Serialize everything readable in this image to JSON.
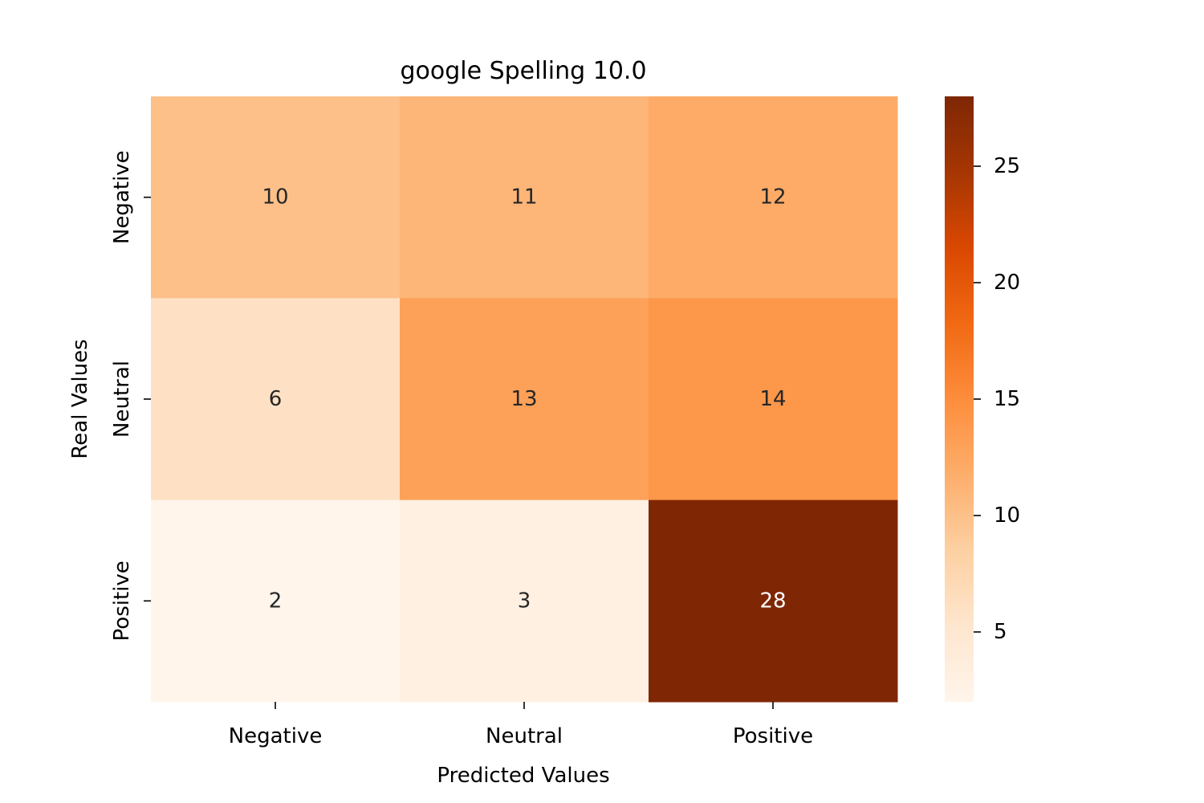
{
  "chart_data": {
    "type": "heatmap",
    "title": "google Spelling 10.0",
    "xlabel": "Predicted Values",
    "ylabel": "Real Values",
    "x_categories": [
      "Negative",
      "Neutral",
      "Positive"
    ],
    "y_categories": [
      "Negative",
      "Neutral",
      "Positive"
    ],
    "values": [
      [
        10,
        11,
        12
      ],
      [
        6,
        13,
        14
      ],
      [
        2,
        3,
        28
      ]
    ],
    "colormap": "Oranges",
    "colorbar": {
      "min": 2,
      "max": 28,
      "ticks": [
        5,
        10,
        15,
        20,
        25
      ]
    },
    "grid": false
  }
}
